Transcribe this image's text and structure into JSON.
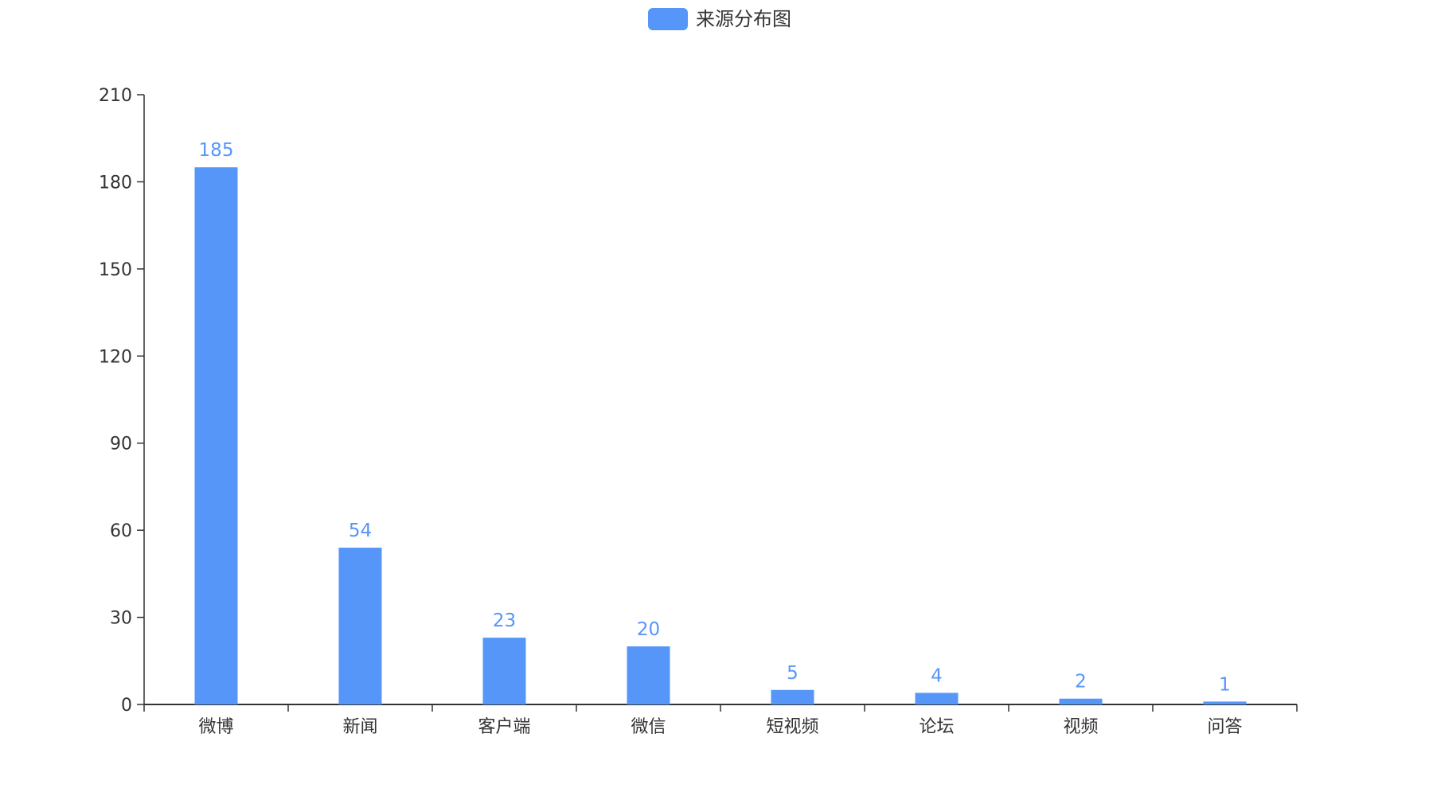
{
  "chart_data": {
    "type": "bar",
    "legend": {
      "label": "来源分布图",
      "position": "top-center"
    },
    "categories": [
      "微博",
      "新闻",
      "客户端",
      "微信",
      "短视频",
      "论坛",
      "视频",
      "问答"
    ],
    "series": [
      {
        "name": "来源分布图",
        "values": [
          185,
          54,
          23,
          20,
          5,
          4,
          2,
          1
        ]
      }
    ],
    "ylim": [
      0,
      210
    ],
    "yticks": [
      0,
      30,
      60,
      90,
      120,
      150,
      180,
      210
    ],
    "grid": false,
    "data_labels": true,
    "colors": {
      "bar": "#5596f8",
      "label": "#5596f8",
      "axis": "#333333"
    }
  }
}
